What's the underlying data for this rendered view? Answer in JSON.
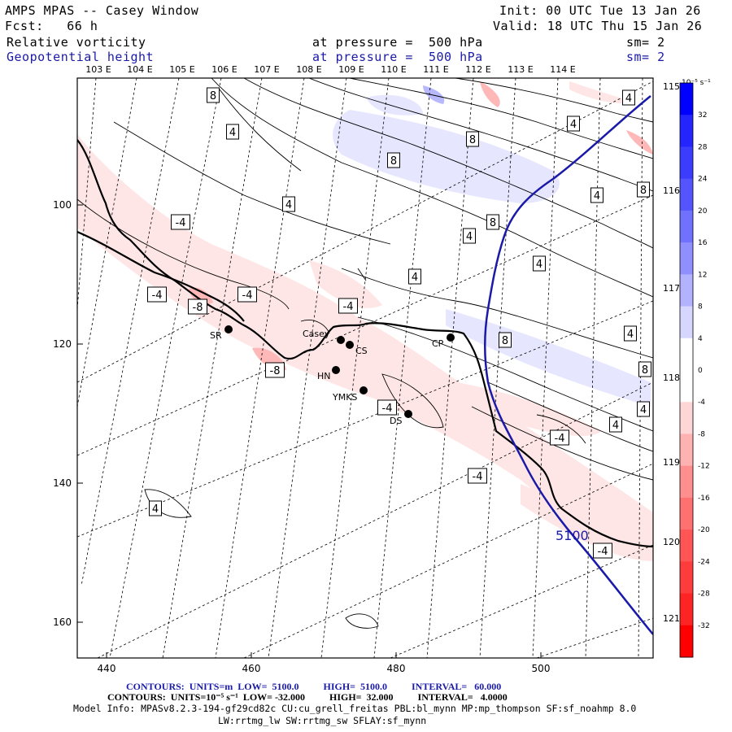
{
  "header": {
    "title": "AMPS MPAS -- Casey Window",
    "init": "Init: 00 UTC Tue 13 Jan 26",
    "forecast": "Fcst:   66 h",
    "valid": "Valid: 18 UTC Thu 15 Jan 26",
    "field1_name": "Relative vorticity",
    "field1_level": "at pressure =  500 hPa",
    "field1_sm": "sm= 2",
    "field2_name": "Geopotential height",
    "field2_level": "at pressure =  500 hPa",
    "field2_sm": "sm= 2"
  },
  "axes": {
    "top_lon_labels": [
      "103 E",
      "104 E",
      "105 E",
      "106 E",
      "107 E",
      "108 E",
      "109 E",
      "110 E",
      "111 E",
      "112 E",
      "113 E",
      "114 E"
    ],
    "right_lat_labels": [
      "115 E",
      "116 E",
      "117 E",
      "118 E",
      "119 E",
      "120 E",
      "121 E"
    ],
    "x_ticks": [
      "440",
      "460",
      "480",
      "500"
    ],
    "y_ticks": [
      "100",
      "120",
      "140",
      "160"
    ]
  },
  "colorbar": {
    "units_label": "10⁻⁵ s⁻¹",
    "tick_labels": [
      "32",
      "28",
      "24",
      "20",
      "16",
      "12",
      "8",
      "4",
      "0",
      "-4",
      "-8",
      "-12",
      "-16",
      "-20",
      "-24",
      "-28",
      "-32"
    ],
    "colors": [
      "#0000ff",
      "#2424ff",
      "#3c3cff",
      "#5555ff",
      "#7171ff",
      "#8f8fff",
      "#b2b2ff",
      "#d6d6ff",
      "#ffffff",
      "#ffffff",
      "#ffd6d6",
      "#ffb2b2",
      "#ff8f8f",
      "#ff7171",
      "#ff5555",
      "#ff3c3c",
      "#ff2424",
      "#ff0000"
    ]
  },
  "stations": [
    {
      "name": "Casey"
    },
    {
      "name": "CS"
    },
    {
      "name": "SR"
    },
    {
      "name": "HN"
    },
    {
      "name": "YMKS"
    },
    {
      "name": "DS"
    },
    {
      "name": "CP"
    }
  ],
  "contour_labels": {
    "positive": [
      "8",
      "4",
      "4",
      "8",
      "8",
      "4",
      "4",
      "8",
      "8",
      "4",
      "4",
      "4",
      "8",
      "4",
      "8",
      "4",
      "4",
      "4",
      "4"
    ],
    "negative": [
      "-4",
      "-4",
      "-4",
      "-8",
      "-4",
      "-8",
      "-4",
      "-4",
      "-4",
      "-4"
    ],
    "height": "5100"
  },
  "footer": {
    "line1": "CONTOURS:  UNITS=m  LOW=  5100.0          HIGH=  5100.0          INTERVAL=   60.000",
    "line2": "CONTOURS:  UNITS=10⁻⁵ s⁻¹  LOW= -32.000          HIGH=  32.000          INTERVAL=   4.0000",
    "line3": "Model Info: MPASv8.2.3-194-gf29cd82c CU:cu_grell_freitas PBL:bl_mynn MP:mp_thompson SF:sf_noahmp 8.0",
    "line4": "LW:rrtmg_lw SW:rrtmg_sw SFLAY:sf_mynn"
  }
}
